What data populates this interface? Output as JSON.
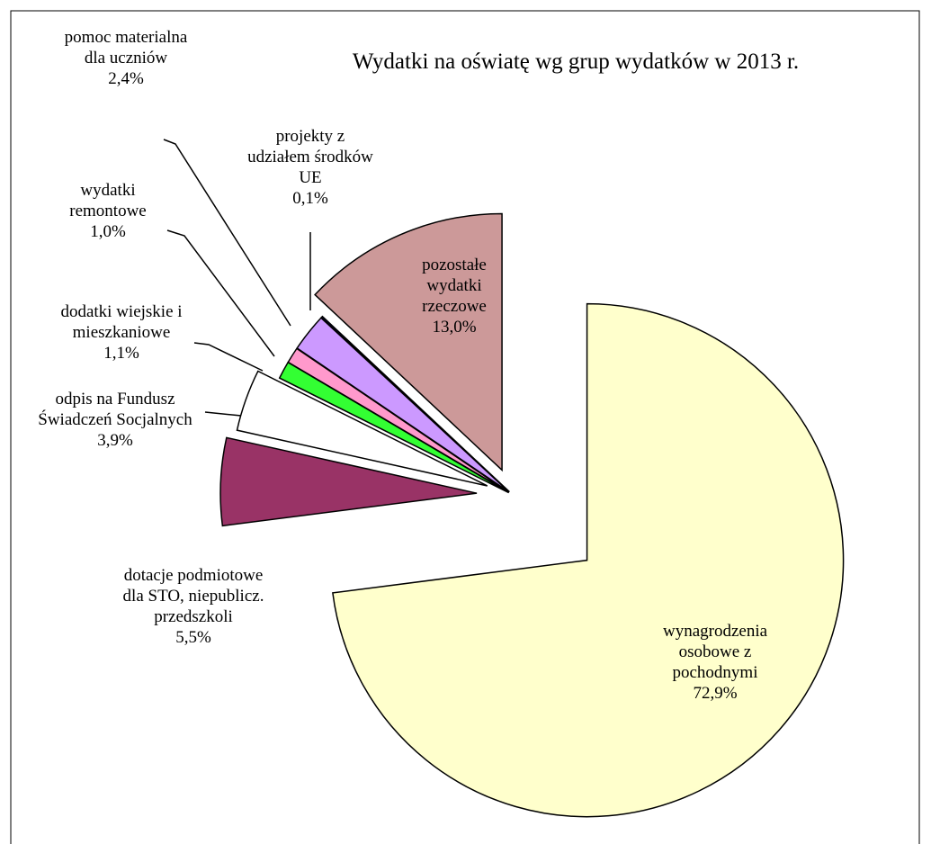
{
  "chart_data": {
    "type": "pie",
    "title": "Wydatki na oświatę wg grup wydatków w 2013 r.",
    "categories": [
      "wynagrodzenia osobowe z pochodnymi",
      "dotacje podmiotowe dla STO, niepublicz. przedszkoli",
      "odpis na Fundusz Świadczeń Socjalnych",
      "dodatki wiejskie i mieszkaniowe",
      "wydatki remontowe",
      "pomoc materialna dla uczniów",
      "projekty z udziałem środków UE",
      "pozostałe wydatki rzeczowe"
    ],
    "values": [
      72.9,
      5.5,
      3.9,
      1.1,
      1.0,
      2.4,
      0.1,
      13.0
    ],
    "value_labels": [
      "72,9%",
      "5,5%",
      "3,9%",
      "1,1%",
      "1,0%",
      "2,4%",
      "0,1%",
      "13,0%"
    ],
    "colors": [
      "#ffffcc",
      "#993366",
      "#ffffff",
      "#33ff33",
      "#ff99cc",
      "#cc99ff",
      "#000080",
      "#cc9999"
    ]
  }
}
